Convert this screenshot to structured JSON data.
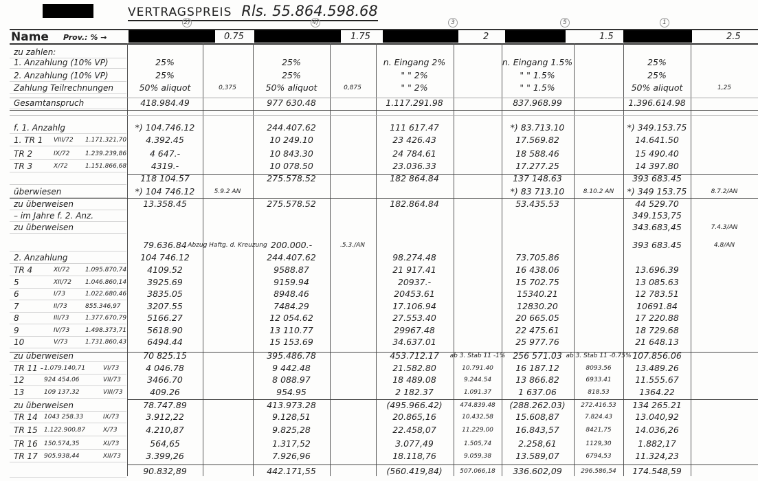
{
  "title": {
    "label": "VERTRAGSPREIS",
    "amount": "Rls. 55.864.598.68"
  },
  "header": {
    "name_label": "Name",
    "prov_label": "Prov.: % →",
    "columns": [
      {
        "circled": "2)",
        "prov": "0.75"
      },
      {
        "circled": "4)",
        "prov": "1.75"
      },
      {
        "circled": "3",
        "prov": "2"
      },
      {
        "circled": "5",
        "prov": "1.5"
      },
      {
        "circled": "1",
        "prov": "2.5"
      }
    ]
  },
  "rows": [
    {
      "label": "zu zahlen:"
    },
    {
      "label": "1. Anzahlung (10% VP)",
      "c2": "25%",
      "c4": "25%",
      "c3": "n. Eingang   2%",
      "c5": "n. Eingang 1.5%",
      "c1": "25%"
    },
    {
      "label": "2. Anzahlung (10% VP)",
      "c2": "25%",
      "c4": "25%",
      "c3": "\"   \"   2%",
      "c5": "\"   \"   1.5%",
      "c1": "25%"
    },
    {
      "label": "Zahlung Teilrechnungen",
      "c2": "50% aliquot",
      "c2s": "0,375",
      "c4": "50% aliquot",
      "c4s": "0,875",
      "c3": "\"   \"   2%",
      "c5": "\"   \"   1.5%",
      "c1": "50% aliquot",
      "c1s": "1,25"
    },
    {
      "label": "Gesamtanspruch",
      "c2": "418.984.49",
      "c4": "977 630.48",
      "c3": "1.117.291.98",
      "c5": "837.968.99",
      "c1": "1.396.614.98"
    },
    {
      "label": "f. 1. Anzahlg",
      "c2": "*) 104.746.12",
      "c4": "244.407.62",
      "c3": "111 617.47",
      "c5": "*) 83.713.10",
      "c1": "*) 349.153.75"
    },
    {
      "label": "1. TR 1",
      "month": "VIII/72",
      "ref": "1.171.321,70",
      "c2": "4.392.45",
      "c4": "10 249.10",
      "c3": "23 426.43",
      "c5": "17.569.82",
      "c1": "14.641.50"
    },
    {
      "label": "TR 2",
      "month": "IX/72",
      "ref": "1.239.239,86",
      "c2": "4 647.-",
      "c4": "10 843.30",
      "c3": "24 784.61",
      "c5": "18 588.46",
      "c1": "15 490.40"
    },
    {
      "label": "TR 3",
      "month": "X/72",
      "ref": "1.151.866,68",
      "c2": "4319.-",
      "c4": "10 078.50",
      "c3": "23.036.33",
      "c5": "17.277.25",
      "c1": "14 397.80"
    },
    {
      "c2": "118 104.57",
      "c4": "275.578.52",
      "c3": "182 864.84",
      "c5": "137 148.63",
      "c1": "393 683.45"
    },
    {
      "label": "überwiesen",
      "c2": "*) 104 746.12",
      "c2s": "5.9.2 AN",
      "c5": "*) 83 713.10",
      "c5s": "8.10.2 AN",
      "c1": "*) 349 153.75",
      "c1s": "8.7.2/AN"
    },
    {
      "label": "zu überweisen",
      "c2": "13.358.45",
      "c4": "275.578.52",
      "c3": "182.864.84",
      "c5": "53.435.53",
      "c1": "44 529.70"
    },
    {
      "label": "– im Jahre f. 2. Anz.",
      "c1": "349.153,75"
    },
    {
      "label": "zu überweisen",
      "c1": "343.683,45",
      "c1s": "7.4.3/AN"
    },
    {
      "c2": "79.636.84",
      "c2s": "Abzug Haftg. d. Kreuzung",
      "c4": "200.000.-",
      "c4s": ".5.3./AN",
      "c1": "393 683.45",
      "c1s": "4.8/AN"
    },
    {
      "label": "2. Anzahlung",
      "c2": "104 746.12",
      "c4": "244.407.62",
      "c3": "98.274.48",
      "c5": "73.705.86"
    },
    {
      "label": "TR 4",
      "month": "XI/72",
      "ref": "1.095.870,74",
      "c2": "4109.52",
      "c4": "9588.87",
      "c3": "21 917.41",
      "c5": "16 438.06",
      "c1": "13.696.39"
    },
    {
      "label": "5",
      "month": "XII/72",
      "ref": "1.046.860,14",
      "c2": "3925.69",
      "c4": "9159.94",
      "c3": "20937.-",
      "c5": "15 702.75",
      "c1": "13 085.63"
    },
    {
      "label": "6",
      "month": "I/73",
      "ref": "1.022.680,46",
      "c2": "3835.05",
      "c4": "8948.46",
      "c3": "20453.61",
      "c5": "15340.21",
      "c1": "12 783.51"
    },
    {
      "label": "7",
      "month": "II/73",
      "ref": "855.346,97",
      "c2": "3207.55",
      "c4": "7484.29",
      "c3": "17.106.94",
      "c5": "12830.20",
      "c1": "10691.84"
    },
    {
      "label": "8",
      "month": "III/73",
      "ref": "1.377.670,79",
      "c2": "5166.27",
      "c4": "12 054.62",
      "c3": "27.553.40",
      "c5": "20 665.05",
      "c1": "17 220.88"
    },
    {
      "label": "9",
      "month": "IV/73",
      "ref": "1.498.373,71",
      "c2": "5618.90",
      "c4": "13 110.77",
      "c3": "29967.48",
      "c5": "22 475.61",
      "c1": "18 729.68"
    },
    {
      "label": "10",
      "month": "V/73",
      "ref": "1.731.860,43",
      "c2": "6494.44",
      "c4": "15 153.69",
      "c3": "34.637.01",
      "c5": "25 977.76",
      "c1": "21 648.13"
    },
    {
      "label": "zu überweisen",
      "c2": "70 825.15",
      "c4": "395.486.78",
      "c3": "453.712.17",
      "c3s": "ab 3. Stab 11 -1%",
      "c5": "256 571.03",
      "c5s": "ab 3. Stab 11 -0.75%",
      "c1": "107.856.06"
    },
    {
      "label": "TR 11 -",
      "ref": "1.079.140,71",
      "month": "VI/73",
      "c2": "4 046.78",
      "c4": "9 442.48",
      "c3": "21.582.80",
      "c3s": "10.791.40",
      "c5": "16 187.12",
      "c5s": "8093.56",
      "c1": "13.489.26"
    },
    {
      "label": "12",
      "ref": "924 454.06",
      "month": "VII/73",
      "c2": "3466.70",
      "c4": "8 088.97",
      "c3": "18 489.08",
      "c3s": "9.244.54",
      "c5": "13 866.82",
      "c5s": "6933.41",
      "c1": "11.555.67"
    },
    {
      "label": "13",
      "ref": "109 137.32",
      "month": "VIII/73",
      "c2": "409.26",
      "c4": "954.95",
      "c3": "2 182.37",
      "c3s": "1.091.37",
      "c5": "1 637.06",
      "c5s": "818.53",
      "c1": "1364.22"
    },
    {
      "label": "zu überweisen",
      "c2": "78.747.89",
      "c4": "413.973.28",
      "c3": "(495.966.42)",
      "c3s": "474.839.48",
      "c5": "(288.262.03)",
      "c5s": "272.416.53",
      "c1": "134 265.21"
    },
    {
      "label": "TR 14",
      "ref": "1043 258.33",
      "month": "IX/73",
      "c2": "3.912,22",
      "c4": "9.128,51",
      "c3": "20.865,16",
      "c3s": "10.432,58",
      "c5": "15.608,87",
      "c5s": "7.824.43",
      "c1": "13.040,92"
    },
    {
      "label": "TR 15",
      "ref": "1.122.900,87",
      "month": "X/73",
      "c2": "4.210,87",
      "c4": "9.825,28",
      "c3": "22.458,07",
      "c3s": "11.229,00",
      "c5": "16.843,57",
      "c5s": "8421,75",
      "c1": "14.036,26"
    },
    {
      "label": "TR 16",
      "ref": "150.574,35",
      "month": "XI/73",
      "c2": "564,65",
      "c4": "1.317,52",
      "c3": "3.077,49",
      "c3s": "1.505,74",
      "c5": "2.258,61",
      "c5s": "1129,30",
      "c1": "1.882,17"
    },
    {
      "label": "TR 17",
      "ref": "905.938,44",
      "month": "XII/73",
      "c2": "3.399,26",
      "c4": "7.926,96",
      "c3": "18.118,76",
      "c3s": "9.059,38",
      "c5": "13.589,07",
      "c5s": "6794,53",
      "c1": "11.324,23"
    },
    {
      "c2": "90.832,89",
      "c4": "442.171,55",
      "c3": "(560.419,84)",
      "c3s": "507.066,18",
      "c5": "336.602,09",
      "c5s": "296.586,54",
      "c1": "174.548,59"
    }
  ]
}
